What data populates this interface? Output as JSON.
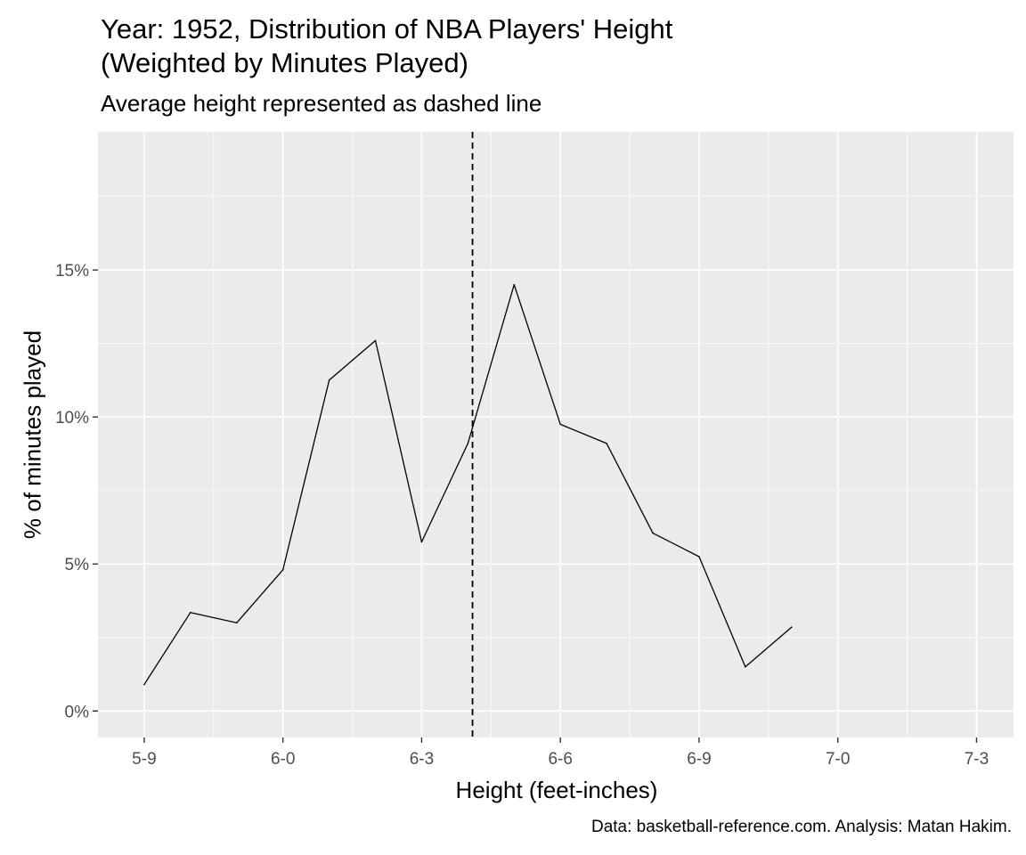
{
  "chart_data": {
    "type": "line",
    "title": "Year: 1952, Distribution of NBA Players' Height\n(Weighted by Minutes Played)",
    "subtitle": "Average height represented as dashed line",
    "xlabel": "Height (feet-inches)",
    "ylabel": "% of minutes played",
    "caption": "Data: basketball-reference.com. Analysis: Matan Hakim.",
    "x_tick_labels": [
      "5-9",
      "6-0",
      "6-3",
      "6-6",
      "6-9",
      "7-0",
      "7-3"
    ],
    "x_tick_values": [
      69,
      72,
      75,
      78,
      81,
      84,
      87
    ],
    "y_tick_labels": [
      "0%",
      "5%",
      "10%",
      "15%"
    ],
    "y_tick_values": [
      0,
      5,
      10,
      15
    ],
    "xlim": [
      68.0,
      87.8
    ],
    "ylim": [
      -0.9,
      19.7
    ],
    "x": [
      69,
      70,
      71,
      72,
      73,
      74,
      75,
      76,
      77,
      78,
      79,
      80,
      81,
      82,
      83
    ],
    "y": [
      0.9,
      3.35,
      3.0,
      4.8,
      11.25,
      12.6,
      5.75,
      9.1,
      14.5,
      9.75,
      9.1,
      6.05,
      5.25,
      1.5,
      2.85
    ],
    "average_height": 76.1,
    "average_line_style": "dashed",
    "grid": true,
    "panel_background": "#ebebeb",
    "grid_color": "#ffffff",
    "line_color": "#000000"
  }
}
